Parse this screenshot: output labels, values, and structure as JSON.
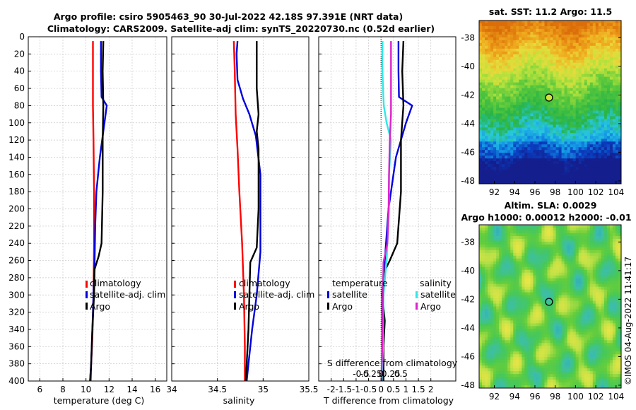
{
  "figure_title": {
    "line1": "Argo profile: csiro 5905463_90 30-Jul-2022 42.18S 97.391E (NRT data)",
    "line2": "Climatology: CARS2009. Satellite-adj clim: synTS_20220730.nc (0.52d earlier)"
  },
  "colors": {
    "climatology": "#ff0000",
    "satellite_adj": "#0000dd",
    "argo": "#000000",
    "salinity_satellite": "#33e6e6",
    "salinity_argo": "#dd22cc",
    "grid": "#c8c8c8"
  },
  "chart_data": [
    {
      "type": "line",
      "id": "temperature",
      "xlabel": "temperature (deg C)",
      "ylabel": "",
      "xlim": [
        5,
        17
      ],
      "ylim": [
        400,
        0
      ],
      "xticks": [
        "6",
        "8",
        "10",
        "12",
        "14",
        "16"
      ],
      "xtick_values": [
        6,
        8,
        10,
        12,
        14,
        16
      ],
      "yticks": [
        "0",
        "20",
        "40",
        "60",
        "80",
        "100",
        "120",
        "140",
        "160",
        "180",
        "200",
        "220",
        "240",
        "260",
        "280",
        "300",
        "320",
        "340",
        "360",
        "380",
        "400"
      ],
      "ytick_values": [
        0,
        20,
        40,
        60,
        80,
        100,
        120,
        140,
        160,
        180,
        200,
        220,
        240,
        260,
        280,
        300,
        320,
        340,
        360,
        380,
        400
      ],
      "grid": true,
      "legend": {
        "position": "center-right",
        "entries": [
          "climatology",
          "satellite-adj. clim",
          "Argo"
        ]
      },
      "series": [
        {
          "name": "climatology",
          "color_key": "climatology",
          "points": [
            [
              10.6,
              5
            ],
            [
              10.6,
              40
            ],
            [
              10.6,
              80
            ],
            [
              10.65,
              120
            ],
            [
              10.7,
              180
            ],
            [
              10.7,
              240
            ],
            [
              10.65,
              300
            ],
            [
              10.55,
              350
            ],
            [
              10.45,
              380
            ],
            [
              10.35,
              400
            ]
          ]
        },
        {
          "name": "satellite-adj. clim",
          "color_key": "satellite_adj",
          "points": [
            [
              11.3,
              5
            ],
            [
              11.3,
              40
            ],
            [
              11.35,
              70
            ],
            [
              11.8,
              80
            ],
            [
              11.6,
              100
            ],
            [
              11.2,
              140
            ],
            [
              10.9,
              180
            ],
            [
              10.8,
              220
            ],
            [
              10.75,
              260
            ],
            [
              10.65,
              300
            ],
            [
              10.55,
              340
            ],
            [
              10.45,
              380
            ],
            [
              10.35,
              400
            ]
          ]
        },
        {
          "name": "Argo",
          "color_key": "argo",
          "points": [
            [
              11.5,
              5
            ],
            [
              11.45,
              40
            ],
            [
              11.5,
              80
            ],
            [
              11.45,
              120
            ],
            [
              11.45,
              180
            ],
            [
              11.35,
              240
            ],
            [
              11.1,
              255
            ],
            [
              10.75,
              270
            ],
            [
              10.7,
              300
            ],
            [
              10.55,
              340
            ],
            [
              10.45,
              380
            ],
            [
              10.4,
              400
            ]
          ]
        }
      ]
    },
    {
      "type": "line",
      "id": "salinity",
      "xlabel": "salinity",
      "ylabel": "",
      "xlim": [
        34,
        35.5
      ],
      "ylim": [
        400,
        0
      ],
      "xticks": [
        "34",
        "34.5",
        "35",
        "35.5"
      ],
      "xtick_values": [
        34,
        34.5,
        35,
        35.5
      ],
      "grid": true,
      "legend": {
        "position": "center-right",
        "entries": [
          "climatology",
          "satellite-adj. clim",
          "Argo"
        ]
      },
      "series": [
        {
          "name": "climatology",
          "color_key": "climatology",
          "points": [
            [
              34.68,
              5
            ],
            [
              34.69,
              40
            ],
            [
              34.7,
              90
            ],
            [
              34.72,
              130
            ],
            [
              34.74,
              180
            ],
            [
              34.77,
              240
            ],
            [
              34.79,
              300
            ],
            [
              34.8,
              360
            ],
            [
              34.8,
              400
            ]
          ]
        },
        {
          "name": "satellite-adj. clim",
          "color_key": "satellite_adj",
          "points": [
            [
              34.72,
              5
            ],
            [
              34.71,
              20
            ],
            [
              34.72,
              50
            ],
            [
              34.78,
              72
            ],
            [
              34.85,
              90
            ],
            [
              34.92,
              115
            ],
            [
              34.97,
              160
            ],
            [
              34.97,
              250
            ],
            [
              34.93,
              300
            ],
            [
              34.88,
              340
            ],
            [
              34.84,
              380
            ],
            [
              34.82,
              400
            ]
          ]
        },
        {
          "name": "Argo",
          "color_key": "argo",
          "points": [
            [
              34.93,
              5
            ],
            [
              34.93,
              60
            ],
            [
              34.95,
              90
            ],
            [
              34.93,
              110
            ],
            [
              34.95,
              130
            ],
            [
              34.95,
              200
            ],
            [
              34.93,
              245
            ],
            [
              34.86,
              262
            ],
            [
              34.85,
              300
            ],
            [
              34.84,
              340
            ],
            [
              34.82,
              380
            ],
            [
              34.81,
              400
            ]
          ]
        }
      ]
    },
    {
      "type": "line",
      "id": "differences",
      "xlabel": "T difference from climatology",
      "xlabel_top": "S difference from climatology",
      "xlim": [
        -2.5,
        3
      ],
      "xticks": [
        "-2",
        "-1.5",
        "-1",
        "-0.5",
        "0",
        "0.5",
        "1",
        "1.5",
        "2"
      ],
      "xtick_values": [
        -2,
        -1.5,
        -1,
        -0.5,
        0,
        0.5,
        1,
        1.5,
        2
      ],
      "xlim_top": [
        -1,
        1
      ],
      "xticks_top": [
        "-0.5",
        "-0.25",
        "0",
        "0.25",
        "0.5"
      ],
      "xtick_values_top": [
        -0.5,
        -0.25,
        0,
        0.25,
        0.5
      ],
      "ylim": [
        400,
        0
      ],
      "grid": true,
      "zero_line": "dotted",
      "legend_temperature": {
        "heading": "temperature",
        "entries": [
          "satellite",
          "Argo"
        ]
      },
      "legend_salinity": {
        "heading": "salinity",
        "entries": [
          "satellite",
          "Argo"
        ]
      },
      "series": [
        {
          "name": "T satellite",
          "color_key": "satellite_adj",
          "axis": "bottom",
          "points": [
            [
              0.7,
              5
            ],
            [
              0.7,
              40
            ],
            [
              0.72,
              70
            ],
            [
              1.25,
              80
            ],
            [
              1.0,
              100
            ],
            [
              0.6,
              140
            ],
            [
              0.3,
              200
            ],
            [
              0.15,
              260
            ],
            [
              0.05,
              300
            ],
            [
              0.05,
              400
            ]
          ]
        },
        {
          "name": "T Argo",
          "color_key": "argo",
          "axis": "bottom",
          "points": [
            [
              0.9,
              5
            ],
            [
              0.85,
              40
            ],
            [
              0.9,
              80
            ],
            [
              0.8,
              120
            ],
            [
              0.8,
              180
            ],
            [
              0.65,
              240
            ],
            [
              0.35,
              260
            ],
            [
              0.1,
              275
            ],
            [
              0.05,
              300
            ],
            [
              0.15,
              330
            ],
            [
              0.1,
              360
            ],
            [
              0.1,
              400
            ]
          ]
        },
        {
          "name": "S satellite",
          "color_key": "salinity_satellite",
          "axis": "top",
          "points": [
            [
              0.04,
              5
            ],
            [
              0.03,
              30
            ],
            [
              0.05,
              60
            ],
            [
              0.07,
              80
            ],
            [
              0.14,
              100
            ],
            [
              0.25,
              120
            ],
            [
              0.2,
              160
            ],
            [
              0.2,
              200
            ],
            [
              0.14,
              260
            ],
            [
              0.06,
              300
            ],
            [
              0.05,
              360
            ],
            [
              0.02,
              400
            ]
          ]
        },
        {
          "name": "S Argo",
          "color_key": "salinity_argo",
          "axis": "top",
          "points": [
            [
              0.25,
              5
            ],
            [
              0.25,
              40
            ],
            [
              0.25,
              90
            ],
            [
              0.22,
              120
            ],
            [
              0.2,
              160
            ],
            [
              0.19,
              200
            ],
            [
              0.16,
              240
            ],
            [
              0.06,
              262
            ],
            [
              0.05,
              300
            ],
            [
              0.03,
              360
            ],
            [
              0.01,
              400
            ]
          ]
        }
      ]
    },
    {
      "type": "heatmap",
      "id": "sst_map",
      "title": "sat. SST: 11.2 Argo: 11.5",
      "xlim": [
        90.5,
        104.5
      ],
      "ylim": [
        -48.2,
        -36.8
      ],
      "xticks": [
        "92",
        "94",
        "96",
        "98",
        "100",
        "102",
        "104"
      ],
      "xtick_values": [
        92,
        94,
        96,
        98,
        100,
        102,
        104
      ],
      "yticks": [
        "-38",
        "-40",
        "-42",
        "-44",
        "-46",
        "-48"
      ],
      "ytick_values": [
        -38,
        -40,
        -42,
        -44,
        -46,
        -48
      ],
      "marker": {
        "lon": 97.391,
        "lat": -42.18
      }
    },
    {
      "type": "heatmap",
      "id": "sla_map",
      "title": "Altim. SLA: 0.0029",
      "subtitle": "Argo h1000: 0.00012 h2000: -0.01",
      "xlim": [
        90.5,
        104.5
      ],
      "ylim": [
        -48.2,
        -36.8
      ],
      "xticks": [
        "92",
        "94",
        "96",
        "98",
        "100",
        "102",
        "104"
      ],
      "xtick_values": [
        92,
        94,
        96,
        98,
        100,
        102,
        104
      ],
      "yticks": [
        "-38",
        "-40",
        "-42",
        "-44",
        "-46",
        "-48"
      ],
      "ytick_values": [
        -38,
        -40,
        -42,
        -44,
        -46,
        -48
      ],
      "marker": {
        "lon": 97.391,
        "lat": -42.18
      }
    }
  ],
  "watermark": "©IMOS 04-Aug-2022 11:41:17"
}
